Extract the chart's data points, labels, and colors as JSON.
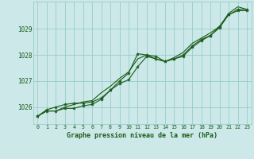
{
  "title": "Graphe pression niveau de la mer (hPa)",
  "x": [
    0,
    1,
    2,
    3,
    4,
    5,
    6,
    7,
    8,
    9,
    10,
    11,
    12,
    13,
    14,
    15,
    16,
    17,
    18,
    19,
    20,
    21,
    22,
    23
  ],
  "line1": [
    1025.65,
    1025.85,
    1025.85,
    1025.95,
    1025.95,
    1026.05,
    1026.1,
    1026.3,
    1026.65,
    1026.9,
    1027.05,
    1027.55,
    1027.95,
    1027.85,
    1027.75,
    1027.85,
    1028.0,
    1028.35,
    1028.6,
    1028.75,
    1029.1,
    1029.55,
    1029.75,
    1029.75
  ],
  "line2": [
    1025.65,
    1025.85,
    1025.85,
    1026.0,
    1026.1,
    1026.2,
    1026.25,
    1026.55,
    1026.8,
    1027.1,
    1027.35,
    1027.85,
    1028.0,
    1027.85,
    1027.75,
    1027.9,
    1028.1,
    1028.45,
    1028.65,
    1028.85,
    1029.1,
    1029.6,
    1029.85,
    1029.75
  ],
  "line3": [
    1025.65,
    1025.9,
    1026.0,
    1026.1,
    1026.15,
    1026.15,
    1026.2,
    1026.35,
    1026.65,
    1027.0,
    1027.3,
    1028.05,
    1028.0,
    1027.95,
    1027.75,
    1027.85,
    1027.95,
    1028.3,
    1028.55,
    1028.75,
    1029.05,
    1029.55,
    1029.7,
    1029.7
  ],
  "line_color": "#1a5c1a",
  "marker_color": "#1a5c1a",
  "bg_color": "#cce8e8",
  "grid_color": "#99cccc",
  "axis_color": "#1a5c1a",
  "ylim": [
    1025.35,
    1030.05
  ],
  "yticks": [
    1026,
    1027,
    1028,
    1029
  ],
  "xlim": [
    -0.5,
    23.5
  ],
  "xticks": [
    0,
    1,
    2,
    3,
    4,
    5,
    6,
    7,
    8,
    9,
    10,
    11,
    12,
    13,
    14,
    15,
    16,
    17,
    18,
    19,
    20,
    21,
    22,
    23
  ]
}
